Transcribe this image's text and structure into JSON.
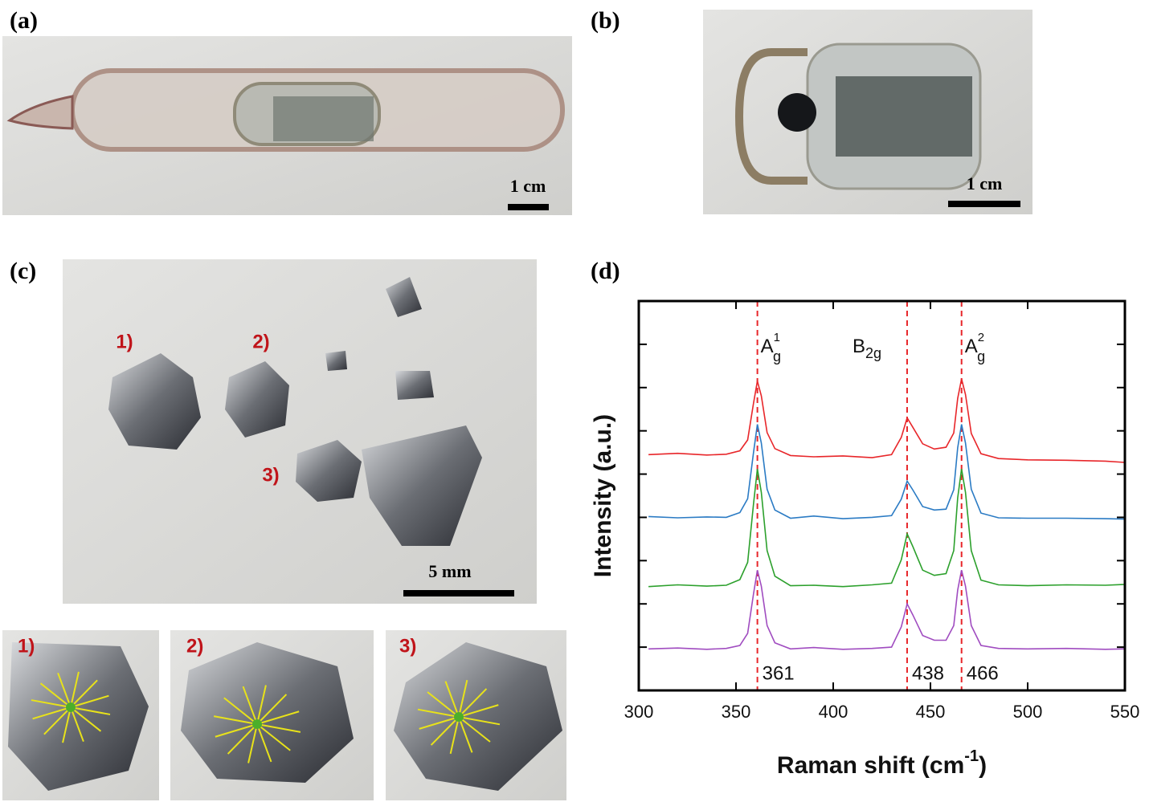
{
  "panels": [
    {
      "label": "(a)",
      "scale_bar": "1 cm"
    },
    {
      "label": "(b)",
      "scale_bar": "1 cm"
    },
    {
      "label": "(c)",
      "scale_bar": "5 mm",
      "markers": [
        "1)",
        "2)",
        "3)"
      ]
    },
    {
      "label": "(d)"
    }
  ],
  "insets": [
    "1)",
    "2)",
    "3)"
  ],
  "chart_data": {
    "type": "line",
    "x_label": "Raman  shift  (cm",
    "x_label_sup": "-1",
    "x_label_end": ")",
    "y_label": "Intensity  (a.u.)",
    "x": [
      305,
      320,
      335,
      345,
      352,
      356,
      359,
      361,
      363,
      366,
      370,
      378,
      390,
      405,
      420,
      430,
      435,
      438,
      441,
      446,
      452,
      458,
      462,
      464,
      466,
      468,
      471,
      476,
      485,
      500,
      520,
      540,
      550
    ],
    "series": [
      {
        "color": "#e8262a",
        "values": [
          5.45,
          5.48,
          5.44,
          5.46,
          5.54,
          5.79,
          6.64,
          7.15,
          6.81,
          5.96,
          5.59,
          5.43,
          5.4,
          5.42,
          5.38,
          5.45,
          5.85,
          6.3,
          6.08,
          5.7,
          5.58,
          5.62,
          5.95,
          6.75,
          7.2,
          6.84,
          5.94,
          5.47,
          5.36,
          5.33,
          5.32,
          5.3,
          5.27
        ]
      },
      {
        "color": "#2b7bc4",
        "values": [
          4.02,
          3.99,
          4.01,
          4.0,
          4.11,
          4.43,
          5.5,
          6.15,
          5.72,
          4.65,
          4.17,
          3.98,
          4.03,
          3.97,
          4.0,
          4.04,
          4.42,
          4.84,
          4.63,
          4.25,
          4.17,
          4.19,
          4.64,
          5.61,
          6.15,
          5.72,
          4.65,
          4.1,
          3.99,
          3.98,
          3.98,
          3.97,
          3.96
        ]
      },
      {
        "color": "#2ca02c",
        "values": [
          2.4,
          2.44,
          2.41,
          2.43,
          2.56,
          2.96,
          4.31,
          5.12,
          4.58,
          3.23,
          2.64,
          2.42,
          2.43,
          2.4,
          2.44,
          2.48,
          3.02,
          3.62,
          3.32,
          2.78,
          2.66,
          2.7,
          3.23,
          4.45,
          5.12,
          4.58,
          3.23,
          2.55,
          2.44,
          2.42,
          2.44,
          2.43,
          2.45
        ]
      },
      {
        "color": "#a04cc0",
        "values": [
          0.96,
          0.98,
          0.95,
          0.97,
          1.04,
          1.32,
          2.23,
          2.78,
          2.41,
          1.5,
          1.1,
          0.96,
          0.99,
          0.95,
          0.97,
          1.0,
          1.47,
          2.0,
          1.74,
          1.27,
          1.16,
          1.16,
          1.5,
          2.32,
          2.78,
          2.41,
          1.5,
          1.04,
          0.97,
          0.96,
          0.97,
          0.95,
          0.96
        ]
      }
    ],
    "peaks": [
      {
        "x": 361,
        "symbol": "A",
        "sub": "g",
        "sup": "1"
      },
      {
        "x": 438,
        "symbol": "B",
        "sub": "2g"
      },
      {
        "x": 466,
        "symbol": "A",
        "sub": "g",
        "sup": "2"
      }
    ],
    "peak_line_color": "#e8262a",
    "xlim": [
      300,
      550
    ],
    "xticks": [
      300,
      350,
      400,
      450,
      500,
      550
    ],
    "ylim": [
      0,
      9
    ],
    "yticks": [
      1,
      2,
      3,
      4,
      5,
      6,
      7,
      8
    ]
  }
}
